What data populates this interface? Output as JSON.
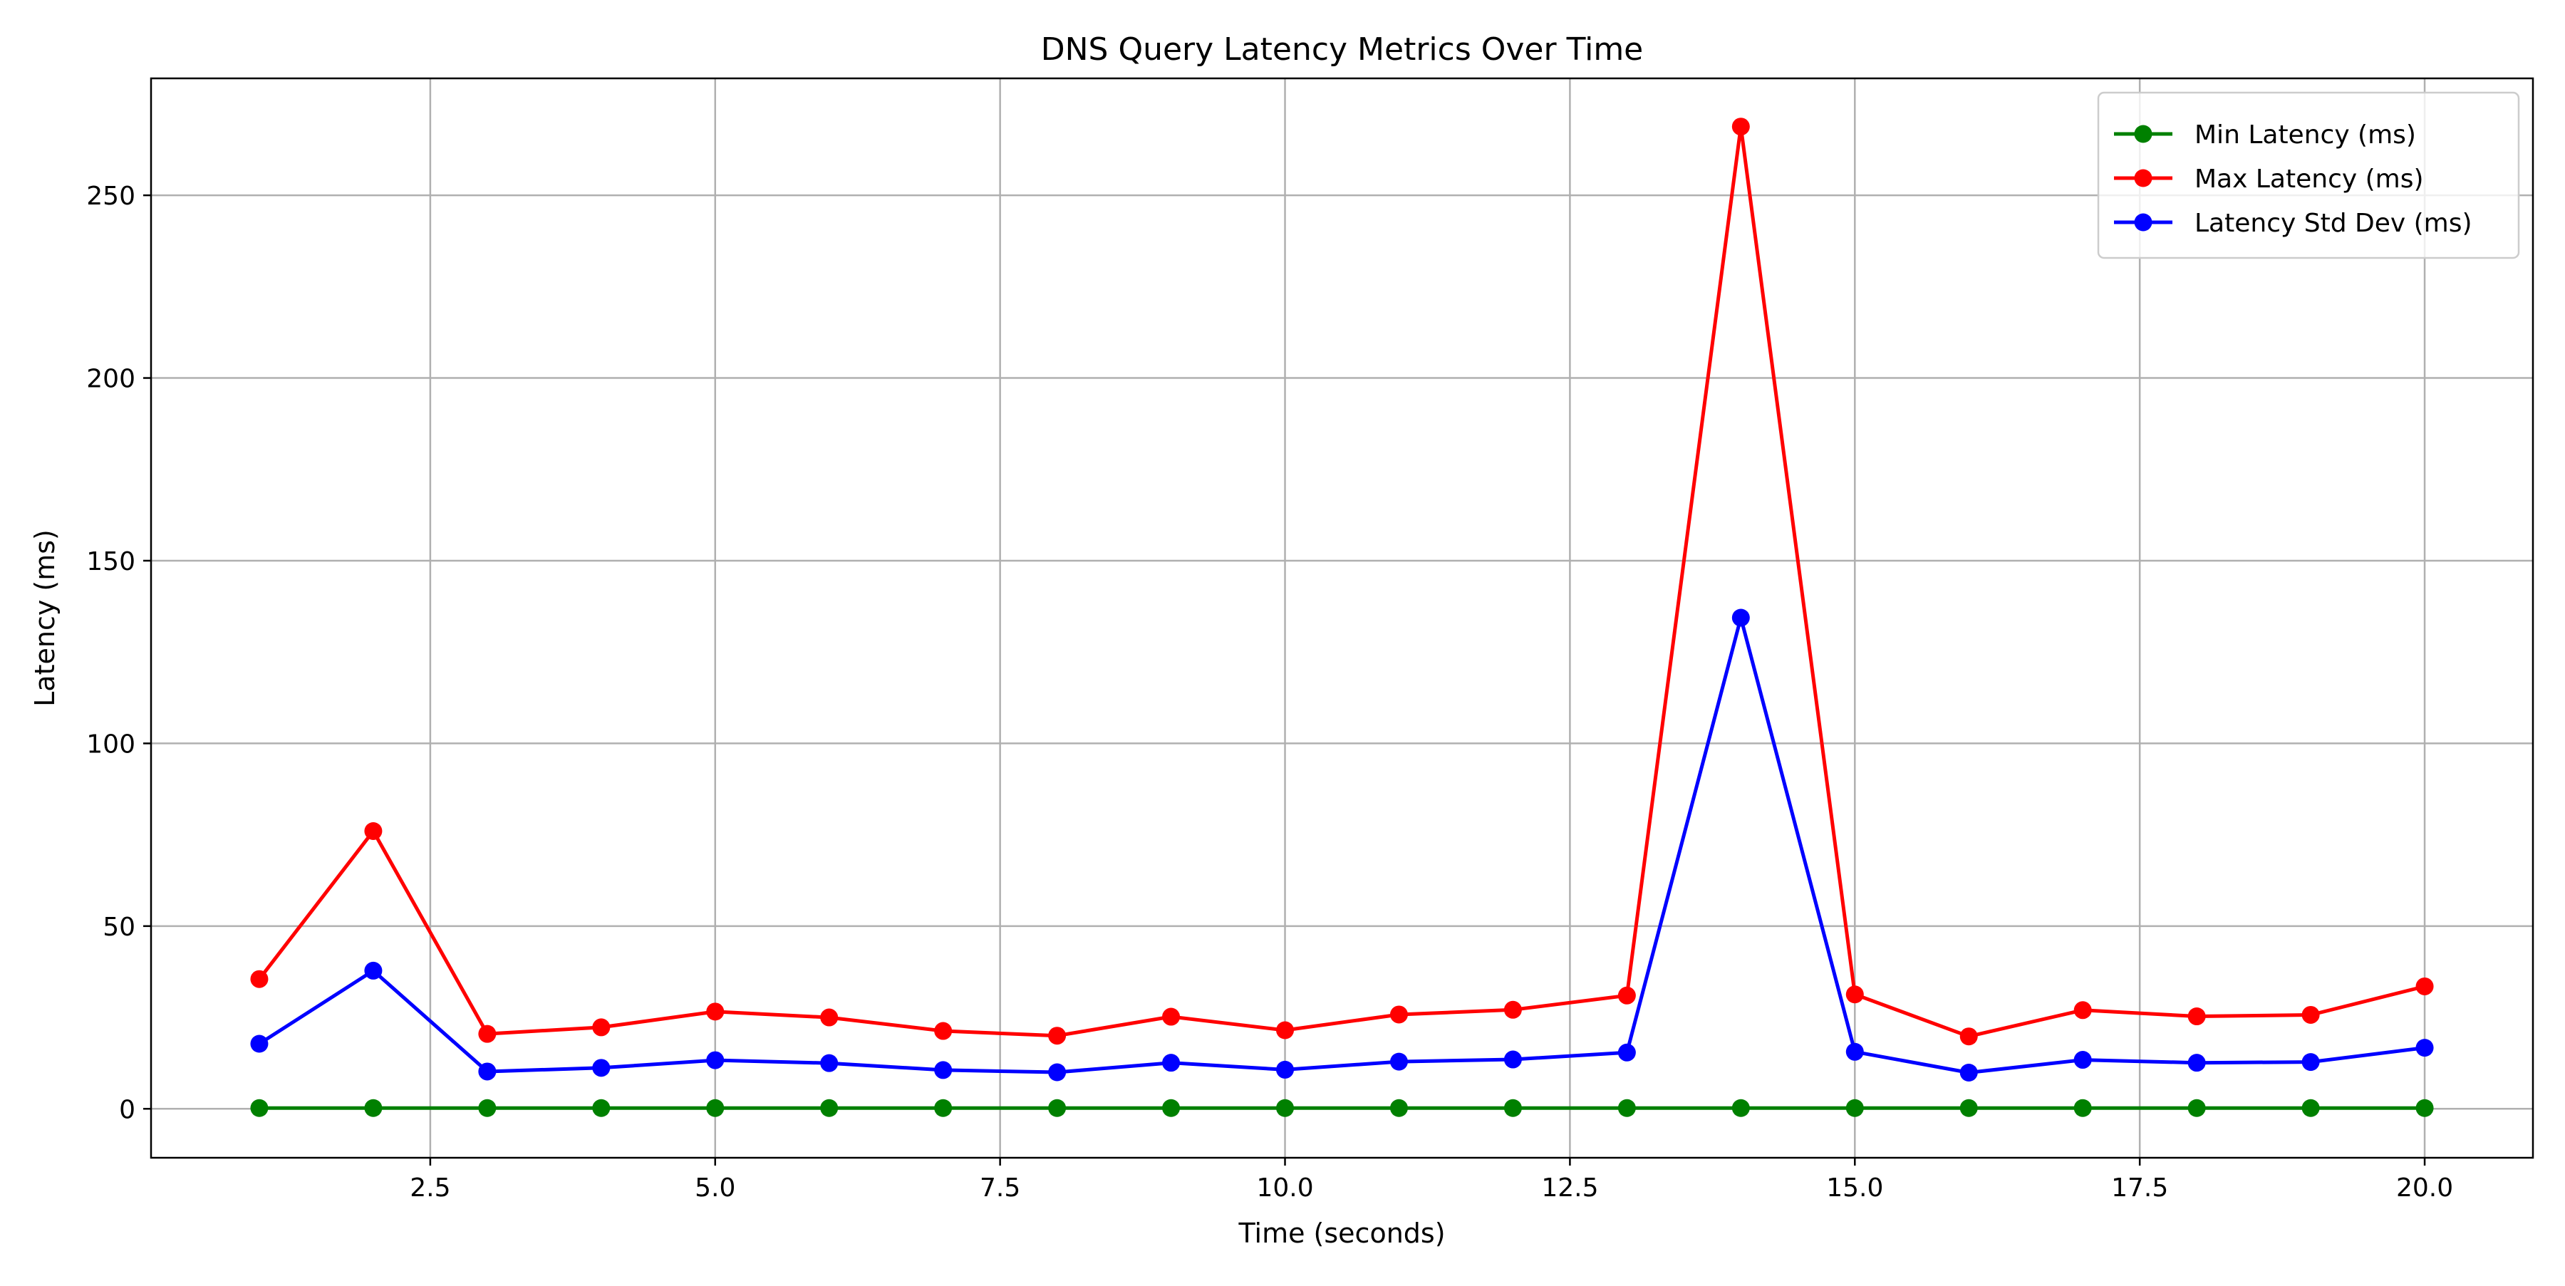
{
  "chart_data": {
    "type": "line",
    "title": "DNS Query Latency Metrics Over Time",
    "xlabel": "Time (seconds)",
    "ylabel": "Latency (ms)",
    "xlim": [
      0.05,
      20.95
    ],
    "ylim": [
      -13.4,
      282.0
    ],
    "xticks": [
      2.5,
      5.0,
      7.5,
      10.0,
      12.5,
      15.0,
      17.5,
      20.0
    ],
    "xtick_labels": [
      "2.5",
      "5.0",
      "7.5",
      "10.0",
      "12.5",
      "15.0",
      "17.5",
      "20.0"
    ],
    "yticks": [
      0,
      50,
      100,
      150,
      200,
      250
    ],
    "ytick_labels": [
      "0",
      "50",
      "100",
      "150",
      "200",
      "250"
    ],
    "grid": true,
    "legend_position": "top-right",
    "x": [
      1,
      2,
      3,
      4,
      5,
      6,
      7,
      8,
      9,
      10,
      11,
      12,
      13,
      14,
      15,
      16,
      17,
      18,
      19,
      20
    ],
    "series": [
      {
        "name": "Min Latency (ms)",
        "color": "#008000",
        "values": [
          0.2,
          0.2,
          0.2,
          0.2,
          0.2,
          0.2,
          0.2,
          0.2,
          0.2,
          0.2,
          0.2,
          0.2,
          0.2,
          0.2,
          0.2,
          0.2,
          0.2,
          0.2,
          0.2,
          0.2
        ]
      },
      {
        "name": "Max Latency (ms)",
        "color": "#ff0000",
        "values": [
          35.5,
          76.0,
          20.5,
          22.3,
          26.6,
          25.0,
          21.3,
          20.0,
          25.2,
          21.5,
          25.8,
          27.1,
          31.0,
          268.8,
          31.3,
          19.8,
          27.0,
          25.3,
          25.7,
          33.5
        ]
      },
      {
        "name": "Latency Std Dev (ms)",
        "color": "#0000ff",
        "values": [
          17.8,
          37.8,
          10.2,
          11.2,
          13.3,
          12.5,
          10.6,
          10.0,
          12.6,
          10.7,
          12.9,
          13.5,
          15.4,
          134.4,
          15.6,
          9.9,
          13.4,
          12.6,
          12.8,
          16.7
        ]
      }
    ]
  }
}
